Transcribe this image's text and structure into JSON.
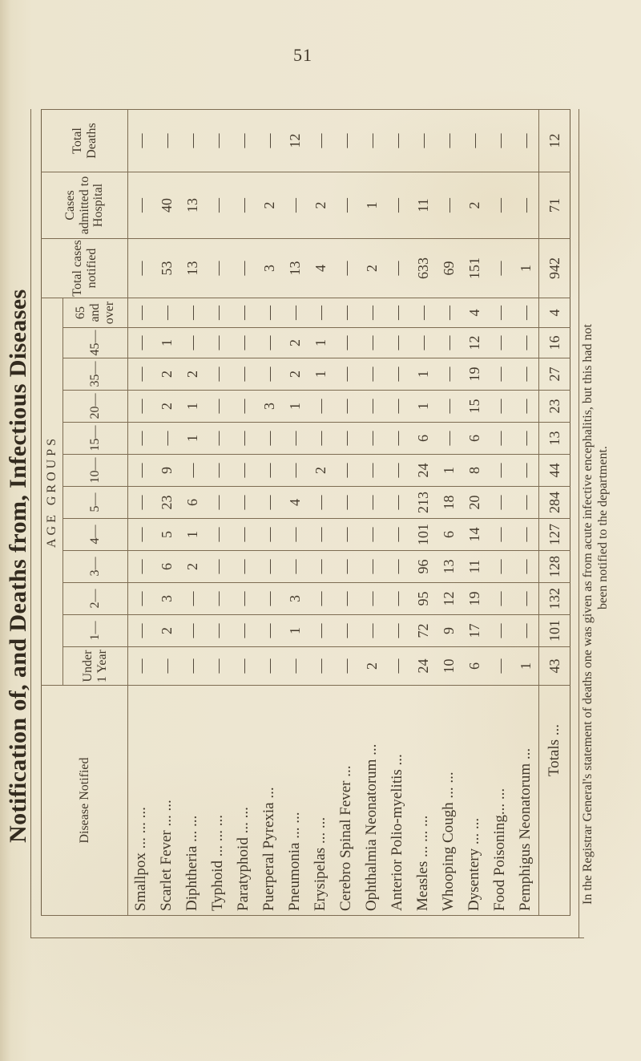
{
  "page": {
    "number": "51",
    "title": "Notification of, and Deaths from, Infectious Diseases",
    "footnote": {
      "line1": "In the Registrar General's statement of deaths one was given as from acute infective encephalitis, but this had not",
      "line2": "been notified to the department."
    }
  },
  "colors": {
    "paper": "#ece5cf",
    "ink": "#43392b",
    "rule": "#7d6c52"
  },
  "table": {
    "corner_header": "Disease Notified",
    "age_groups_label": "AGE GROUPS",
    "age_columns": [
      "Under 1 Year",
      "1—",
      "2—",
      "3—",
      "4—",
      "5—",
      "10—",
      "15—",
      "20—",
      "35—",
      "45—",
      "65 and over"
    ],
    "summary_columns": [
      "Total cases notified",
      "Cases admitted to Hospital",
      "Total Deaths"
    ],
    "rows": [
      {
        "label": "Smallpox ... ... ...",
        "ages": [
          "—",
          "—",
          "—",
          "—",
          "—",
          "—",
          "—",
          "—",
          "—",
          "—",
          "—",
          "—"
        ],
        "total": "—",
        "hospital": "—",
        "deaths": "—"
      },
      {
        "label": "Scarlet Fever ... ...",
        "ages": [
          "—",
          "2",
          "3",
          "6",
          "5",
          "23",
          "9",
          "—",
          "2",
          "2",
          "1",
          "—"
        ],
        "total": "53",
        "hospital": "40",
        "deaths": "—"
      },
      {
        "label": "Diphtheria ... ...",
        "ages": [
          "—",
          "—",
          "—",
          "2",
          "1",
          "6",
          "—",
          "1",
          "1",
          "2",
          "—",
          "—"
        ],
        "total": "13",
        "hospital": "13",
        "deaths": "—"
      },
      {
        "label": "Typhoid ... ... ...",
        "ages": [
          "—",
          "—",
          "—",
          "—",
          "—",
          "—",
          "—",
          "—",
          "—",
          "—",
          "—",
          "—"
        ],
        "total": "—",
        "hospital": "—",
        "deaths": "—"
      },
      {
        "label": "Paratyphoid ... ...",
        "ages": [
          "—",
          "—",
          "—",
          "—",
          "—",
          "—",
          "—",
          "—",
          "—",
          "—",
          "—",
          "—"
        ],
        "total": "—",
        "hospital": "—",
        "deaths": "—"
      },
      {
        "label": "Puerperal Pyrexia ...",
        "ages": [
          "—",
          "—",
          "—",
          "—",
          "—",
          "—",
          "—",
          "—",
          "3",
          "—",
          "—",
          "—"
        ],
        "total": "3",
        "hospital": "2",
        "deaths": "—"
      },
      {
        "label": "Pneumonia ... ...",
        "ages": [
          "—",
          "1",
          "3",
          "—",
          "—",
          "4",
          "—",
          "—",
          "1",
          "2",
          "2",
          "—"
        ],
        "total": "13",
        "hospital": "—",
        "deaths": "12"
      },
      {
        "label": "Erysipelas ... ...",
        "ages": [
          "—",
          "—",
          "—",
          "—",
          "—",
          "—",
          "2",
          "—",
          "—",
          "1",
          "1",
          "—"
        ],
        "total": "4",
        "hospital": "2",
        "deaths": "—"
      },
      {
        "label": "Cerebro Spinal Fever ...",
        "ages": [
          "—",
          "—",
          "—",
          "—",
          "—",
          "—",
          "—",
          "—",
          "—",
          "—",
          "—",
          "—"
        ],
        "total": "—",
        "hospital": "—",
        "deaths": "—"
      },
      {
        "label": "Ophthalmia Neonatorum ...",
        "ages": [
          "2",
          "—",
          "—",
          "—",
          "—",
          "—",
          "—",
          "—",
          "—",
          "—",
          "—",
          "—"
        ],
        "total": "2",
        "hospital": "1",
        "deaths": "—"
      },
      {
        "label": "Anterior Polio-myelitis ...",
        "ages": [
          "—",
          "—",
          "—",
          "—",
          "—",
          "—",
          "—",
          "—",
          "—",
          "—",
          "—",
          "—"
        ],
        "total": "—",
        "hospital": "—",
        "deaths": "—"
      },
      {
        "label": "Measles ... ... ...",
        "ages": [
          "24",
          "72",
          "95",
          "96",
          "101",
          "213",
          "24",
          "6",
          "1",
          "1",
          "—",
          "—"
        ],
        "total": "633",
        "hospital": "11",
        "deaths": "—"
      },
      {
        "label": "Whooping Cough ... ...",
        "ages": [
          "10",
          "9",
          "12",
          "13",
          "6",
          "18",
          "1",
          "—",
          "—",
          "—",
          "—",
          "—"
        ],
        "total": "69",
        "hospital": "—",
        "deaths": "—"
      },
      {
        "label": "Dysentery ... ...",
        "ages": [
          "6",
          "17",
          "19",
          "11",
          "14",
          "20",
          "8",
          "6",
          "15",
          "19",
          "12",
          "4"
        ],
        "total": "151",
        "hospital": "2",
        "deaths": "—"
      },
      {
        "label": "Food Poisoning... ...",
        "ages": [
          "—",
          "—",
          "—",
          "—",
          "—",
          "—",
          "—",
          "—",
          "—",
          "—",
          "—",
          "—"
        ],
        "total": "—",
        "hospital": "—",
        "deaths": "—"
      },
      {
        "label": "Pemphigus Neonatorum ...",
        "ages": [
          "1",
          "—",
          "—",
          "—",
          "—",
          "—",
          "—",
          "—",
          "—",
          "—",
          "—",
          "—"
        ],
        "total": "1",
        "hospital": "—",
        "deaths": "—"
      }
    ],
    "totals": {
      "label": "Totals ...",
      "ages": [
        "43",
        "101",
        "132",
        "128",
        "127",
        "284",
        "44",
        "13",
        "23",
        "27",
        "16",
        "4"
      ],
      "total": "942",
      "hospital": "71",
      "deaths": "12"
    }
  }
}
